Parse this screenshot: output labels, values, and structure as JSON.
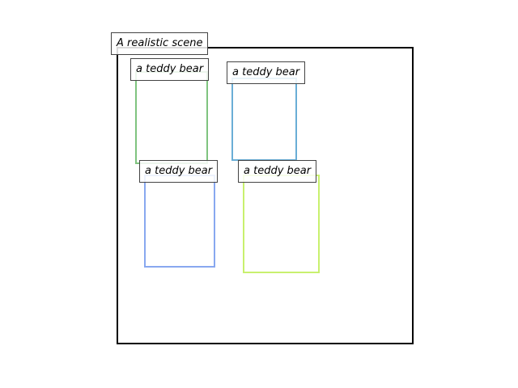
{
  "scene": {
    "label": "A realistic scene",
    "border_color": "#000000"
  },
  "boxes": [
    {
      "label": "a teddy bear",
      "color": "#7fc47f"
    },
    {
      "label": "a teddy bear",
      "color": "#6aaed6"
    },
    {
      "label": "a teddy bear",
      "color": "#88a8f0"
    },
    {
      "label": "a teddy bear",
      "color": "#c8f06e"
    }
  ]
}
